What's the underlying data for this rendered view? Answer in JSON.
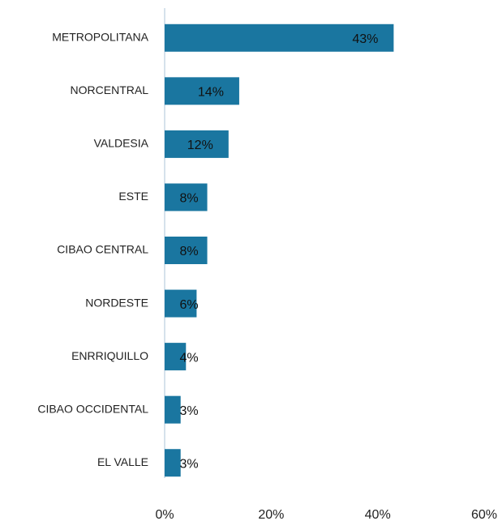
{
  "chart_data": {
    "type": "bar",
    "orientation": "horizontal",
    "categories": [
      "METROPOLITANA",
      "NORCENTRAL",
      "VALDESIA",
      "ESTE",
      "CIBAO CENTRAL",
      "NORDESTE",
      "ENRRIQUILLO",
      "CIBAO OCCIDENTAL",
      "EL VALLE"
    ],
    "values": [
      43,
      14,
      12,
      8,
      8,
      6,
      4,
      3,
      3
    ],
    "value_labels": [
      "43%",
      "14%",
      "12%",
      "8%",
      "8%",
      "6%",
      "4%",
      "3%",
      "3%"
    ],
    "color": "#1a76a0",
    "xlim": [
      0,
      60
    ],
    "xticks": [
      {
        "value": 0,
        "label": "0%"
      },
      {
        "value": 20,
        "label": "20%"
      },
      {
        "value": 40,
        "label": "40%"
      },
      {
        "value": 60,
        "label": "60%"
      }
    ]
  }
}
